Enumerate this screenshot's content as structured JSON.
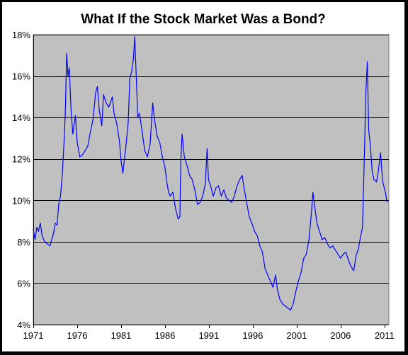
{
  "chart_data": {
    "type": "line",
    "title": "What If the Stock Market Was a Bond?",
    "xlabel": "",
    "ylabel": "",
    "xlim": [
      1971,
      2011.5
    ],
    "ylim": [
      4,
      18
    ],
    "x_ticks": [
      1971,
      1976,
      1981,
      1986,
      1991,
      1996,
      2001,
      2006,
      2011
    ],
    "x_tick_labels": [
      "1971",
      "1976",
      "1981",
      "1986",
      "1991",
      "1996",
      "2001",
      "2006",
      "2011"
    ],
    "y_ticks": [
      4,
      6,
      8,
      10,
      12,
      14,
      16,
      18
    ],
    "y_tick_labels": [
      "4%",
      "6%",
      "8%",
      "10%",
      "12%",
      "14%",
      "16%",
      "18%"
    ],
    "grid": "horizontal",
    "legend": "none",
    "colors": {
      "line": "#0000ff",
      "plot_background": "#c0c0c0",
      "gridline": "#000000",
      "page_background": "#000000"
    },
    "series": [
      {
        "name": "",
        "points": [
          [
            1971.0,
            8.6
          ],
          [
            1971.2,
            8.1
          ],
          [
            1971.4,
            8.7
          ],
          [
            1971.6,
            8.5
          ],
          [
            1971.8,
            8.9
          ],
          [
            1972.0,
            8.3
          ],
          [
            1972.3,
            8.0
          ],
          [
            1972.6,
            7.9
          ],
          [
            1972.9,
            7.8
          ],
          [
            1973.1,
            8.1
          ],
          [
            1973.3,
            8.4
          ],
          [
            1973.5,
            8.9
          ],
          [
            1973.7,
            8.8
          ],
          [
            1973.9,
            9.8
          ],
          [
            1974.1,
            10.2
          ],
          [
            1974.3,
            11.2
          ],
          [
            1974.5,
            12.8
          ],
          [
            1974.65,
            14.2
          ],
          [
            1974.8,
            17.1
          ],
          [
            1974.95,
            16.0
          ],
          [
            1975.1,
            16.4
          ],
          [
            1975.3,
            14.4
          ],
          [
            1975.5,
            13.2
          ],
          [
            1975.8,
            14.1
          ],
          [
            1976.0,
            12.8
          ],
          [
            1976.3,
            12.1
          ],
          [
            1976.6,
            12.2
          ],
          [
            1976.9,
            12.4
          ],
          [
            1977.2,
            12.6
          ],
          [
            1977.5,
            13.3
          ],
          [
            1977.8,
            13.9
          ],
          [
            1978.1,
            15.2
          ],
          [
            1978.3,
            15.5
          ],
          [
            1978.5,
            14.4
          ],
          [
            1978.8,
            13.6
          ],
          [
            1979.0,
            15.1
          ],
          [
            1979.3,
            14.7
          ],
          [
            1979.6,
            14.5
          ],
          [
            1980.0,
            15.0
          ],
          [
            1980.2,
            14.2
          ],
          [
            1980.5,
            13.7
          ],
          [
            1980.8,
            12.9
          ],
          [
            1981.0,
            11.9
          ],
          [
            1981.2,
            11.3
          ],
          [
            1981.5,
            12.4
          ],
          [
            1981.8,
            13.7
          ],
          [
            1982.0,
            15.9
          ],
          [
            1982.2,
            16.2
          ],
          [
            1982.4,
            16.8
          ],
          [
            1982.55,
            17.9
          ],
          [
            1982.7,
            16.3
          ],
          [
            1982.9,
            14.0
          ],
          [
            1983.1,
            14.2
          ],
          [
            1983.4,
            13.3
          ],
          [
            1983.7,
            12.4
          ],
          [
            1984.0,
            12.1
          ],
          [
            1984.3,
            12.7
          ],
          [
            1984.6,
            14.7
          ],
          [
            1984.8,
            13.9
          ],
          [
            1985.1,
            13.1
          ],
          [
            1985.4,
            12.8
          ],
          [
            1985.7,
            12.1
          ],
          [
            1986.0,
            11.6
          ],
          [
            1986.2,
            10.9
          ],
          [
            1986.4,
            10.4
          ],
          [
            1986.6,
            10.2
          ],
          [
            1986.9,
            10.4
          ],
          [
            1987.2,
            9.6
          ],
          [
            1987.5,
            9.1
          ],
          [
            1987.7,
            9.2
          ],
          [
            1987.8,
            11.8
          ],
          [
            1987.95,
            13.2
          ],
          [
            1988.2,
            12.1
          ],
          [
            1988.5,
            11.7
          ],
          [
            1988.8,
            11.2
          ],
          [
            1989.1,
            11.0
          ],
          [
            1989.4,
            10.5
          ],
          [
            1989.7,
            9.8
          ],
          [
            1990.0,
            9.9
          ],
          [
            1990.3,
            10.2
          ],
          [
            1990.6,
            10.8
          ],
          [
            1990.8,
            12.5
          ],
          [
            1990.95,
            11.0
          ],
          [
            1991.2,
            10.7
          ],
          [
            1991.5,
            10.2
          ],
          [
            1991.8,
            10.6
          ],
          [
            1992.1,
            10.7
          ],
          [
            1992.4,
            10.2
          ],
          [
            1992.7,
            10.5
          ],
          [
            1993.0,
            10.1
          ],
          [
            1993.3,
            10.0
          ],
          [
            1993.6,
            9.9
          ],
          [
            1993.9,
            10.2
          ],
          [
            1994.2,
            10.7
          ],
          [
            1994.5,
            11.0
          ],
          [
            1994.8,
            11.2
          ],
          [
            1995.0,
            10.6
          ],
          [
            1995.3,
            9.9
          ],
          [
            1995.6,
            9.2
          ],
          [
            1995.9,
            8.9
          ],
          [
            1996.2,
            8.5
          ],
          [
            1996.5,
            8.3
          ],
          [
            1996.8,
            7.8
          ],
          [
            1997.1,
            7.5
          ],
          [
            1997.4,
            6.7
          ],
          [
            1997.7,
            6.4
          ],
          [
            1998.0,
            6.1
          ],
          [
            1998.3,
            5.8
          ],
          [
            1998.6,
            6.4
          ],
          [
            1998.8,
            5.7
          ],
          [
            1999.1,
            5.2
          ],
          [
            1999.4,
            5.0
          ],
          [
            1999.7,
            4.9
          ],
          [
            2000.0,
            4.8
          ],
          [
            2000.3,
            4.7
          ],
          [
            2000.6,
            5.0
          ],
          [
            2000.9,
            5.6
          ],
          [
            2001.2,
            6.1
          ],
          [
            2001.5,
            6.5
          ],
          [
            2001.8,
            7.2
          ],
          [
            2002.1,
            7.4
          ],
          [
            2002.4,
            8.1
          ],
          [
            2002.7,
            9.5
          ],
          [
            2002.85,
            10.4
          ],
          [
            2003.0,
            9.9
          ],
          [
            2003.3,
            8.9
          ],
          [
            2003.6,
            8.5
          ],
          [
            2003.9,
            8.1
          ],
          [
            2004.2,
            8.2
          ],
          [
            2004.5,
            7.9
          ],
          [
            2004.8,
            7.7
          ],
          [
            2005.1,
            7.8
          ],
          [
            2005.4,
            7.6
          ],
          [
            2005.7,
            7.4
          ],
          [
            2006.0,
            7.2
          ],
          [
            2006.3,
            7.4
          ],
          [
            2006.6,
            7.5
          ],
          [
            2006.9,
            7.1
          ],
          [
            2007.2,
            6.8
          ],
          [
            2007.5,
            6.6
          ],
          [
            2007.8,
            7.4
          ],
          [
            2008.0,
            7.6
          ],
          [
            2008.3,
            8.3
          ],
          [
            2008.5,
            8.7
          ],
          [
            2008.75,
            12.8
          ],
          [
            2008.85,
            15.0
          ],
          [
            2009.05,
            16.7
          ],
          [
            2009.2,
            13.4
          ],
          [
            2009.4,
            12.6
          ],
          [
            2009.6,
            11.4
          ],
          [
            2009.8,
            11.0
          ],
          [
            2010.1,
            10.9
          ],
          [
            2010.3,
            11.4
          ],
          [
            2010.55,
            12.3
          ],
          [
            2010.8,
            10.9
          ],
          [
            2011.1,
            10.4
          ],
          [
            2011.3,
            9.9
          ]
        ]
      }
    ]
  }
}
